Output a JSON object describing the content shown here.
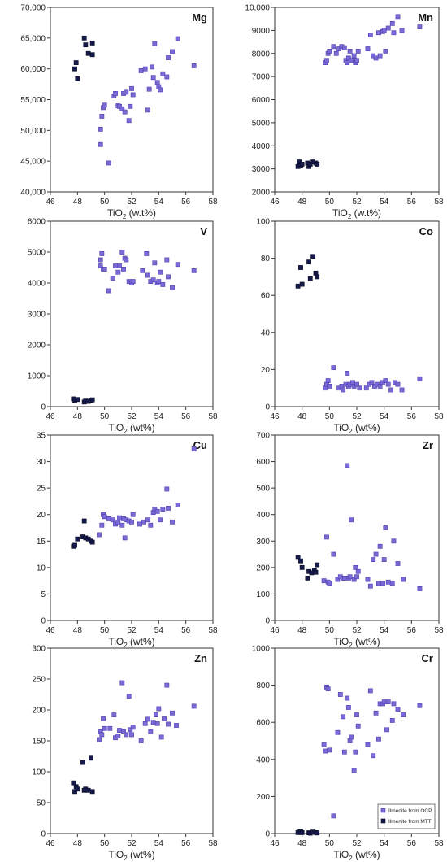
{
  "colors": {
    "ocp": "#7b6ad6",
    "ocp_edge": "#4a3fb0",
    "mtt": "#161a4a",
    "mtt_edge": "#0a0c2a",
    "axis": "#333333"
  },
  "legend": {
    "ocp": "Ilmenite from OCP",
    "mtt": "Ilmenite from MTT"
  },
  "chart_data": [
    {
      "type": "scatter",
      "title": "Mg",
      "xlabel_main": "TiO",
      "xlabel_sub": "2",
      "xlabel_rest": " (w.t%)",
      "xlim": [
        46,
        58
      ],
      "ylim": [
        40000,
        70000
      ],
      "xticks": [
        46,
        48,
        50,
        52,
        54,
        56,
        58
      ],
      "yticks": [
        40000,
        45000,
        50000,
        55000,
        60000,
        65000,
        70000
      ],
      "yticklabels": [
        "40,000",
        "45,000",
        "50,000",
        "55,000",
        "60,000",
        "65,000",
        "70,000"
      ],
      "series": [
        {
          "key": "mtt",
          "x": [
            47.8,
            47.9,
            48.0,
            48.5,
            48.6,
            48.8,
            49.1,
            49.1
          ],
          "y": [
            60000,
            61000,
            58400,
            65000,
            63900,
            62500,
            64200,
            62300
          ]
        },
        {
          "key": "ocp",
          "x": [
            49.7,
            49.7,
            49.8,
            49.9,
            50.0,
            50.3,
            50.7,
            50.8,
            51.0,
            51.1,
            51.3,
            51.4,
            51.5,
            51.6,
            51.8,
            51.9,
            52.0,
            52.1,
            52.7,
            53.0,
            53.2,
            53.3,
            53.5,
            53.6,
            53.7,
            53.9,
            54.0,
            54.1,
            54.3,
            54.6,
            54.7,
            55.0,
            55.4,
            56.6
          ],
          "y": [
            47700,
            50200,
            52300,
            53700,
            54100,
            44700,
            55600,
            56000,
            54000,
            53900,
            53500,
            56000,
            53000,
            56200,
            51600,
            53900,
            56800,
            55800,
            59700,
            60000,
            53300,
            56700,
            60300,
            58600,
            64100,
            57800,
            57100,
            56600,
            59200,
            58700,
            61800,
            62800,
            64900,
            60500
          ]
        }
      ]
    },
    {
      "type": "scatter",
      "title": "Mn",
      "xlabel_main": "TiO",
      "xlabel_sub": "2",
      "xlabel_rest": " (w.t%)",
      "xlim": [
        46,
        58
      ],
      "ylim": [
        2000,
        10000
      ],
      "xticks": [
        46,
        48,
        50,
        52,
        54,
        56,
        58
      ],
      "yticks": [
        2000,
        3000,
        4000,
        5000,
        6000,
        7000,
        8000,
        9000,
        10000
      ],
      "yticklabels": [
        "2000",
        "3000",
        "4000",
        "5000",
        "6000",
        "7000",
        "8000",
        "9000",
        "10,000"
      ],
      "series": [
        {
          "key": "mtt",
          "x": [
            47.7,
            47.8,
            47.9,
            48.0,
            48.4,
            48.5,
            48.6,
            48.8,
            49.0,
            49.1
          ],
          "y": [
            3100,
            3300,
            3150,
            3200,
            3250,
            3100,
            3200,
            3300,
            3250,
            3200
          ]
        },
        {
          "key": "ocp",
          "x": [
            49.7,
            49.8,
            49.9,
            50.0,
            50.3,
            50.5,
            50.7,
            50.9,
            51.1,
            51.2,
            51.3,
            51.4,
            51.5,
            51.6,
            51.8,
            51.9,
            52.0,
            52.1,
            52.8,
            53.0,
            53.2,
            53.4,
            53.6,
            53.7,
            53.9,
            54.0,
            54.1,
            54.3,
            54.6,
            54.7,
            55.0,
            55.3,
            56.6
          ],
          "y": [
            7600,
            7700,
            8000,
            8100,
            8300,
            8000,
            8200,
            8300,
            8250,
            7700,
            7600,
            7800,
            8100,
            7700,
            7900,
            7600,
            7700,
            8100,
            8200,
            8800,
            7900,
            7800,
            8900,
            7900,
            8950,
            9000,
            8100,
            9100,
            9300,
            8900,
            9600,
            9000,
            9150
          ]
        }
      ]
    },
    {
      "type": "scatter",
      "title": "V",
      "xlabel_main": "TiO",
      "xlabel_sub": "2",
      "xlabel_rest": " (wt%)",
      "xlim": [
        46,
        58
      ],
      "ylim": [
        0,
        6000
      ],
      "xticks": [
        46,
        48,
        50,
        52,
        54,
        56,
        58
      ],
      "yticks": [
        0,
        1000,
        2000,
        3000,
        4000,
        5000,
        6000
      ],
      "yticklabels": [
        "0",
        "1000",
        "2000",
        "3000",
        "4000",
        "5000",
        "6000"
      ],
      "series": [
        {
          "key": "mtt",
          "x": [
            47.7,
            47.8,
            48.0,
            48.5,
            48.6,
            48.8,
            49.0,
            49.1
          ],
          "y": [
            250,
            200,
            230,
            150,
            180,
            170,
            200,
            220
          ]
        },
        {
          "key": "ocp",
          "x": [
            49.7,
            49.7,
            49.8,
            49.9,
            50.0,
            50.3,
            50.6,
            50.8,
            51.0,
            51.1,
            51.3,
            51.4,
            51.5,
            51.6,
            51.8,
            52.0,
            52.1,
            52.8,
            53.1,
            53.2,
            53.4,
            53.6,
            53.7,
            53.9,
            54.0,
            54.1,
            54.3,
            54.6,
            54.7,
            55.0,
            55.4,
            56.6
          ],
          "y": [
            4750,
            4550,
            4950,
            4450,
            4450,
            3750,
            4150,
            4550,
            4350,
            4550,
            5000,
            4450,
            4800,
            4750,
            4050,
            4000,
            4050,
            4400,
            4950,
            4250,
            4050,
            4100,
            4650,
            4000,
            4050,
            4350,
            3950,
            4750,
            4200,
            3850,
            4600,
            4400
          ]
        }
      ]
    },
    {
      "type": "scatter",
      "title": "Co",
      "xlabel_main": "TiO",
      "xlabel_sub": "2",
      "xlabel_rest": " (wt%)",
      "xlim": [
        46,
        58
      ],
      "ylim": [
        0,
        100
      ],
      "xticks": [
        46,
        48,
        50,
        52,
        54,
        56,
        58
      ],
      "yticks": [
        0,
        20,
        40,
        60,
        80,
        100
      ],
      "yticklabels": [
        "0",
        "20",
        "40",
        "60",
        "80",
        "100"
      ],
      "series": [
        {
          "key": "mtt",
          "x": [
            47.7,
            47.9,
            48.0,
            48.5,
            48.6,
            48.8,
            49.0,
            49.1
          ],
          "y": [
            65,
            75,
            66,
            78,
            69,
            81,
            72,
            70
          ]
        },
        {
          "key": "ocp",
          "x": [
            49.7,
            49.8,
            49.9,
            50.0,
            50.3,
            50.7,
            50.9,
            51.0,
            51.2,
            51.3,
            51.4,
            51.5,
            51.7,
            51.8,
            52.0,
            52.2,
            52.7,
            52.9,
            53.1,
            53.3,
            53.5,
            53.7,
            53.9,
            54.1,
            54.3,
            54.5,
            54.8,
            55.0,
            55.3,
            56.6
          ],
          "y": [
            10,
            12,
            14,
            11,
            21,
            10,
            11,
            9,
            12,
            18,
            11,
            12,
            13,
            11,
            12,
            10,
            10,
            12,
            13,
            11,
            12,
            11,
            13,
            14,
            12,
            9,
            13,
            12,
            9,
            15
          ]
        }
      ]
    },
    {
      "type": "scatter",
      "title": "Cu",
      "xlabel_main": "TiO",
      "xlabel_sub": "2",
      "xlabel_rest": " (wt%)",
      "xlim": [
        46,
        58
      ],
      "ylim": [
        0,
        35
      ],
      "xticks": [
        46,
        48,
        50,
        52,
        54,
        56,
        58
      ],
      "yticks": [
        0,
        5,
        10,
        15,
        20,
        25,
        30,
        35
      ],
      "yticklabels": [
        "0",
        "5",
        "10",
        "15",
        "20",
        "25",
        "30",
        "35"
      ],
      "series": [
        {
          "key": "mtt",
          "x": [
            47.7,
            47.8,
            48.0,
            48.4,
            48.5,
            48.6,
            48.8,
            49.0,
            49.1
          ],
          "y": [
            14.0,
            14.2,
            15.4,
            15.8,
            18.8,
            15.6,
            15.4,
            15.0,
            14.8
          ]
        },
        {
          "key": "ocp",
          "x": [
            49.6,
            49.8,
            49.9,
            50.0,
            50.3,
            50.6,
            50.8,
            51.0,
            51.1,
            51.3,
            51.4,
            51.5,
            51.6,
            51.8,
            52.0,
            52.1,
            52.6,
            52.9,
            53.2,
            53.4,
            53.6,
            53.7,
            53.9,
            54.1,
            54.3,
            54.6,
            54.7,
            55.0,
            55.4,
            56.6
          ],
          "y": [
            16.2,
            18.0,
            20.0,
            19.6,
            19.2,
            19.0,
            18.2,
            18.6,
            19.4,
            18.0,
            19.2,
            15.6,
            19.0,
            18.8,
            18.6,
            20.0,
            18.2,
            18.6,
            19.0,
            18.0,
            20.4,
            21.0,
            20.6,
            19.0,
            21.0,
            24.8,
            21.2,
            18.6,
            21.8,
            32.4
          ]
        }
      ]
    },
    {
      "type": "scatter",
      "title": "Zr",
      "xlabel_main": "TiO",
      "xlabel_sub": "2",
      "xlabel_rest": " (wt%)",
      "xlim": [
        46,
        58
      ],
      "ylim": [
        0,
        700
      ],
      "xticks": [
        46,
        48,
        50,
        52,
        54,
        56,
        58
      ],
      "yticks": [
        0,
        100,
        200,
        300,
        400,
        500,
        600,
        700
      ],
      "yticklabels": [
        "0",
        "100",
        "200",
        "300",
        "400",
        "500",
        "600",
        "700"
      ],
      "series": [
        {
          "key": "mtt",
          "x": [
            47.7,
            47.9,
            48.0,
            48.4,
            48.5,
            48.7,
            48.9,
            49.0,
            49.1
          ],
          "y": [
            238,
            225,
            200,
            160,
            185,
            180,
            190,
            182,
            210
          ]
        },
        {
          "key": "ocp",
          "x": [
            49.6,
            49.8,
            49.9,
            50.0,
            50.3,
            50.6,
            50.8,
            51.0,
            51.1,
            51.3,
            51.4,
            51.5,
            51.6,
            51.8,
            51.9,
            52.0,
            52.1,
            52.8,
            53.0,
            53.2,
            53.4,
            53.6,
            53.7,
            53.9,
            54.0,
            54.1,
            54.3,
            54.6,
            54.7,
            55.0,
            55.4,
            56.6
          ],
          "y": [
            150,
            315,
            145,
            140,
            250,
            155,
            165,
            160,
            160,
            585,
            160,
            165,
            380,
            155,
            200,
            165,
            185,
            155,
            130,
            230,
            250,
            140,
            280,
            140,
            230,
            350,
            145,
            140,
            300,
            215,
            155,
            120
          ]
        }
      ]
    },
    {
      "type": "scatter",
      "title": "Zn",
      "xlabel_main": "TiO",
      "xlabel_sub": "2",
      "xlabel_rest": " (wt%)",
      "xlim": [
        46,
        58
      ],
      "ylim": [
        0,
        300
      ],
      "xticks": [
        46,
        48,
        50,
        52,
        54,
        56,
        58
      ],
      "yticks": [
        0,
        50,
        100,
        150,
        200,
        250,
        300
      ],
      "yticklabels": [
        "0",
        "50",
        "100",
        "150",
        "200",
        "250",
        "300"
      ],
      "series": [
        {
          "key": "mtt",
          "x": [
            47.7,
            47.8,
            47.9,
            48.0,
            48.4,
            48.5,
            48.6,
            48.8,
            49.0,
            49.1
          ],
          "y": [
            82,
            68,
            76,
            72,
            115,
            70,
            72,
            70,
            122,
            68
          ]
        },
        {
          "key": "ocp",
          "x": [
            49.6,
            49.7,
            49.8,
            49.9,
            50.0,
            50.4,
            50.7,
            50.8,
            51.0,
            51.1,
            51.3,
            51.4,
            51.6,
            51.8,
            51.9,
            52.0,
            52.1,
            52.7,
            53.0,
            53.2,
            53.4,
            53.6,
            53.8,
            53.9,
            54.0,
            54.2,
            54.4,
            54.6,
            54.7,
            55.0,
            55.3,
            56.6
          ],
          "y": [
            152,
            165,
            160,
            186,
            170,
            170,
            192,
            155,
            158,
            167,
            244,
            165,
            160,
            222,
            168,
            160,
            172,
            150,
            178,
            185,
            165,
            180,
            192,
            178,
            202,
            156,
            186,
            240,
            177,
            195,
            175,
            206
          ]
        }
      ]
    },
    {
      "type": "scatter",
      "title": "Cr",
      "xlabel_main": "TiO",
      "xlabel_sub": "2",
      "xlabel_rest": " (wt%)",
      "xlim": [
        46,
        58
      ],
      "ylim": [
        0,
        1000
      ],
      "xticks": [
        46,
        48,
        50,
        52,
        54,
        56,
        58
      ],
      "yticks": [
        0,
        200,
        400,
        600,
        800,
        1000
      ],
      "yticklabels": [
        "0",
        "200",
        "400",
        "600",
        "800",
        "1000"
      ],
      "series": [
        {
          "key": "mtt",
          "x": [
            47.7,
            47.8,
            47.9,
            48.0,
            48.5,
            48.6,
            48.8,
            49.0,
            49.1
          ],
          "y": [
            5,
            8,
            10,
            5,
            4,
            2,
            8,
            5,
            3
          ]
        },
        {
          "key": "ocp",
          "x": [
            49.6,
            49.7,
            49.8,
            49.9,
            50.0,
            50.3,
            50.6,
            50.8,
            51.0,
            51.1,
            51.3,
            51.4,
            51.5,
            51.6,
            51.8,
            51.9,
            52.0,
            52.1,
            52.8,
            53.0,
            53.2,
            53.4,
            53.6,
            53.7,
            53.9,
            54.0,
            54.2,
            54.3,
            54.6,
            54.7,
            55.0,
            55.4,
            56.6
          ],
          "y": [
            480,
            445,
            790,
            780,
            450,
            95,
            545,
            750,
            630,
            440,
            730,
            680,
            500,
            520,
            340,
            440,
            640,
            580,
            480,
            770,
            420,
            650,
            510,
            700,
            700,
            710,
            560,
            710,
            610,
            700,
            670,
            640,
            690
          ]
        }
      ]
    }
  ]
}
